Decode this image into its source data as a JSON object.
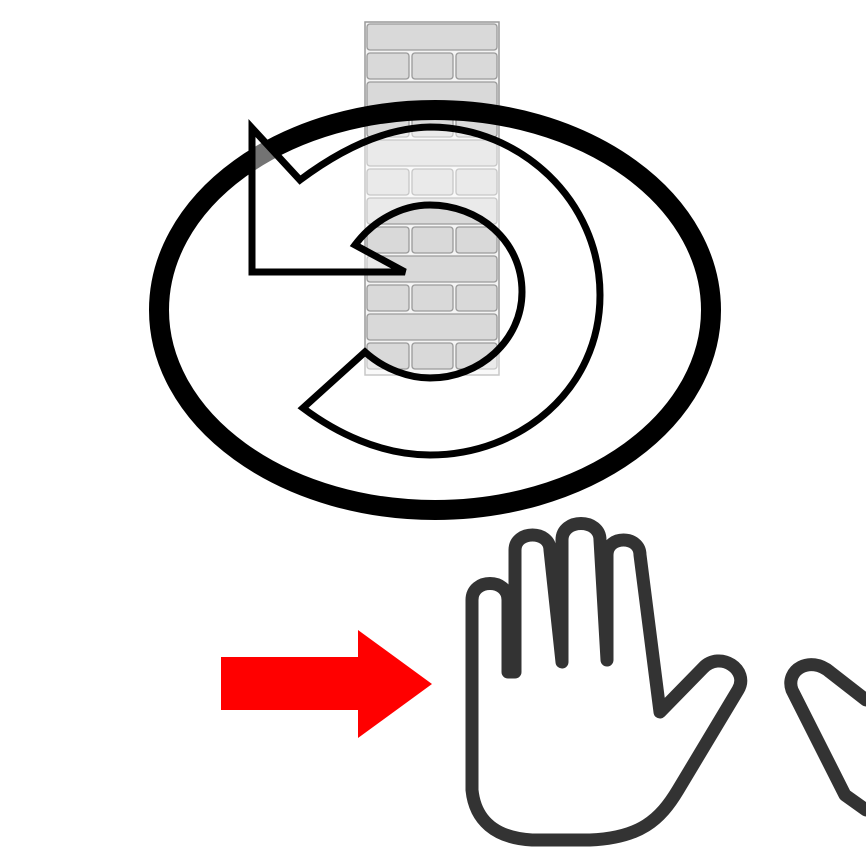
{
  "diagram": {
    "elements": [
      {
        "icon": "brick-wall-icon",
        "color": "#d9d9d9",
        "stroke": "#9a9a9a"
      },
      {
        "icon": "ellipse-ring-icon",
        "color": "#000000"
      },
      {
        "icon": "turn-back-arrow-icon",
        "fill": "#ffffff",
        "stroke": "#000000"
      },
      {
        "icon": "right-arrow-icon",
        "color": "#ff0000"
      },
      {
        "icon": "raised-hand-icon",
        "stroke": "#333333"
      },
      {
        "icon": "second-hand-partial-icon",
        "stroke": "#333333"
      }
    ],
    "background": "#ffffff"
  }
}
